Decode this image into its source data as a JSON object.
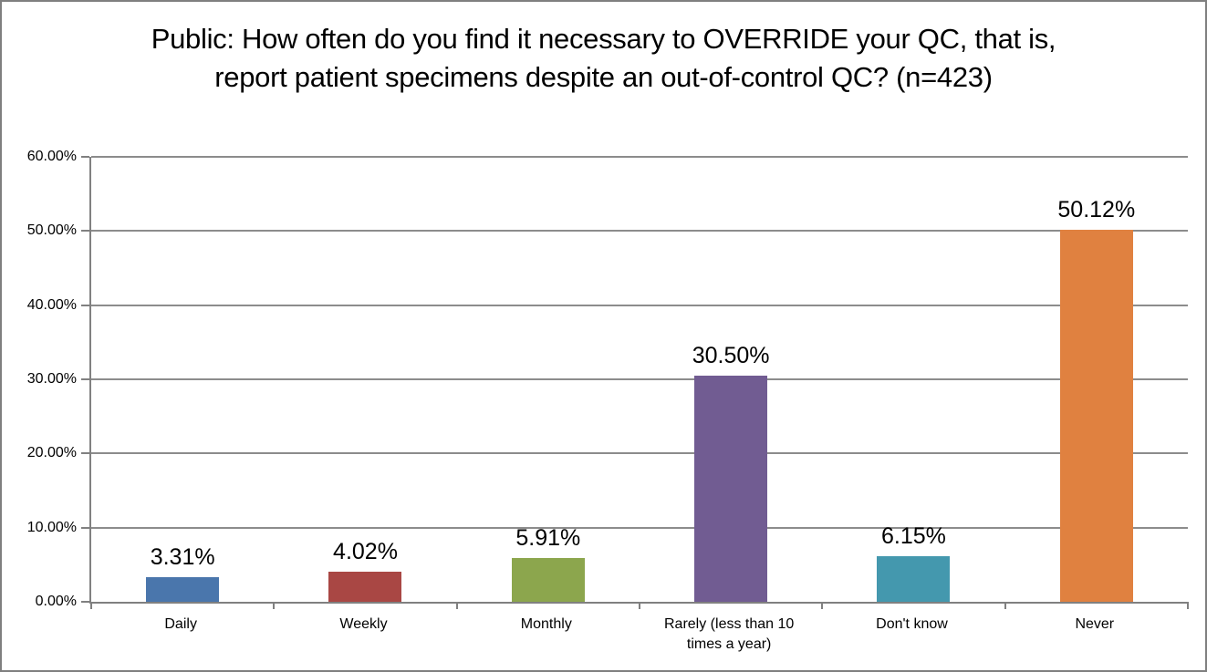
{
  "figure": {
    "background": "#ffffff",
    "border_color": "#7f7f7f"
  },
  "chart_data": {
    "type": "bar",
    "title": "Public: How often do you find it necessary to OVERRIDE your QC, that is, report patient specimens despite an out-of-control QC? (n=423)",
    "categories": [
      "Daily",
      "Weekly",
      "Monthly",
      "Rarely (less than 10 times a year)",
      "Don't know",
      "Never"
    ],
    "values": [
      3.31,
      4.02,
      5.91,
      30.5,
      6.15,
      50.12
    ],
    "data_labels": [
      "3.31%",
      "4.02%",
      "5.91%",
      "30.50%",
      "6.15%",
      "50.12%"
    ],
    "bar_colors": [
      "#4A76AC",
      "#A94744",
      "#8CA64D",
      "#715C92",
      "#4498AE",
      "#E08140"
    ],
    "xlabel": "",
    "ylabel": "",
    "ylim": [
      0,
      60
    ],
    "y_ticks": [
      "0.00%",
      "10.00%",
      "20.00%",
      "30.00%",
      "40.00%",
      "50.00%",
      "60.00%"
    ],
    "grid": "horizontal",
    "gridline_color": "#8C8C8C",
    "axis_color": "#808080",
    "legend": "none"
  }
}
